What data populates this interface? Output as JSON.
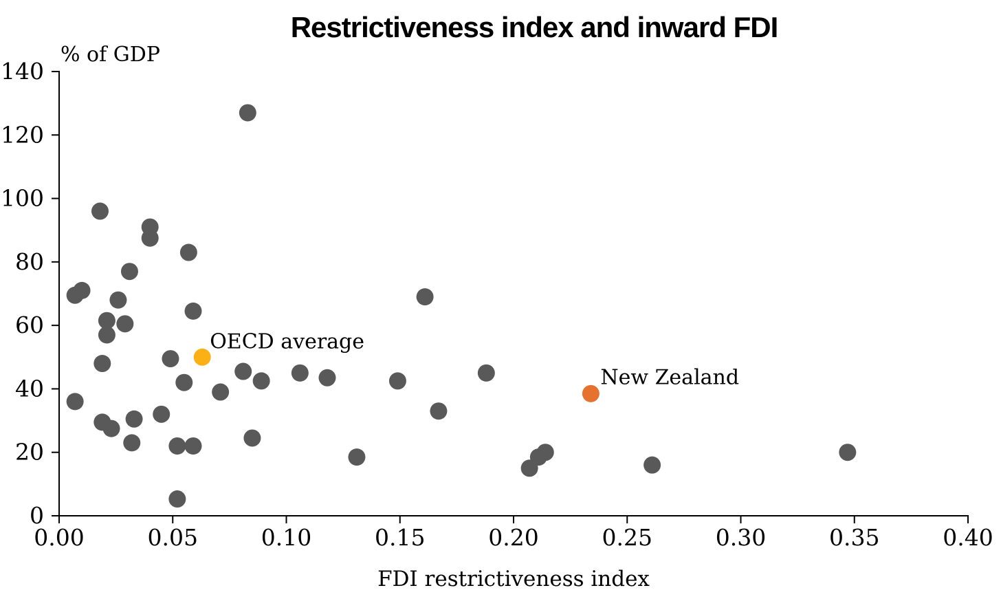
{
  "title": "Restrictiveness index and inward FDI",
  "y_axis_unit_label": "% of GDP",
  "x_axis_label": "FDI restrictiveness index",
  "colors": {
    "default_point": "#595959",
    "oecd_point": "#FBB116",
    "new_zealand_point": "#E5722E",
    "axis": "#000000"
  },
  "chart_data": {
    "type": "scatter",
    "title": "Restrictiveness index and inward FDI",
    "xlabel": "FDI restrictiveness index",
    "ylabel": "% of GDP",
    "xlim": [
      0.0,
      0.4
    ],
    "ylim": [
      0,
      140
    ],
    "grid": false,
    "x_ticks": {
      "values": [
        0.0,
        0.05,
        0.1,
        0.15,
        0.2,
        0.25,
        0.3,
        0.35,
        0.4
      ],
      "labels": [
        "0.00",
        "0.05",
        "0.10",
        "0.15",
        "0.20",
        "0.25",
        "0.30",
        "0.35",
        "0.40"
      ]
    },
    "y_ticks": {
      "values": [
        0,
        20,
        40,
        60,
        80,
        100,
        120,
        140
      ],
      "labels": [
        "0",
        "20",
        "40",
        "60",
        "80",
        "100",
        "120",
        "140"
      ]
    },
    "series": [
      {
        "name": "countries",
        "slug": "country",
        "color": "#595959",
        "points": [
          [
            0.083,
            127
          ],
          [
            0.018,
            96
          ],
          [
            0.04,
            91
          ],
          [
            0.04,
            87.5
          ],
          [
            0.057,
            83
          ],
          [
            0.031,
            77
          ],
          [
            0.01,
            71
          ],
          [
            0.007,
            69.5
          ],
          [
            0.026,
            68
          ],
          [
            0.059,
            64.5
          ],
          [
            0.021,
            61.5
          ],
          [
            0.029,
            60.5
          ],
          [
            0.021,
            57
          ],
          [
            0.049,
            49.5
          ],
          [
            0.019,
            48
          ],
          [
            0.081,
            45.5
          ],
          [
            0.106,
            45
          ],
          [
            0.118,
            43.5
          ],
          [
            0.089,
            42.5
          ],
          [
            0.055,
            42
          ],
          [
            0.149,
            42.5
          ],
          [
            0.161,
            69
          ],
          [
            0.167,
            33
          ],
          [
            0.188,
            45
          ],
          [
            0.071,
            39
          ],
          [
            0.007,
            36
          ],
          [
            0.045,
            32
          ],
          [
            0.033,
            30.5
          ],
          [
            0.019,
            29.5
          ],
          [
            0.023,
            27.5
          ],
          [
            0.085,
            24.5
          ],
          [
            0.032,
            23
          ],
          [
            0.052,
            22
          ],
          [
            0.059,
            22
          ],
          [
            0.131,
            18.5
          ],
          [
            0.207,
            15
          ],
          [
            0.211,
            18.5
          ],
          [
            0.214,
            20
          ],
          [
            0.261,
            16
          ],
          [
            0.347,
            20
          ],
          [
            0.052,
            5.3
          ]
        ]
      },
      {
        "name": "OECD average",
        "slug": "oecd-average",
        "color": "#FBB116",
        "label": "OECD average",
        "label_offset": [
          11,
          -13
        ],
        "points": [
          [
            0.063,
            50
          ]
        ]
      },
      {
        "name": "New Zealand",
        "slug": "new-zealand",
        "color": "#E5722E",
        "label": "New Zealand",
        "label_offset": [
          14,
          -14
        ],
        "points": [
          [
            0.234,
            38.5
          ]
        ]
      }
    ]
  }
}
